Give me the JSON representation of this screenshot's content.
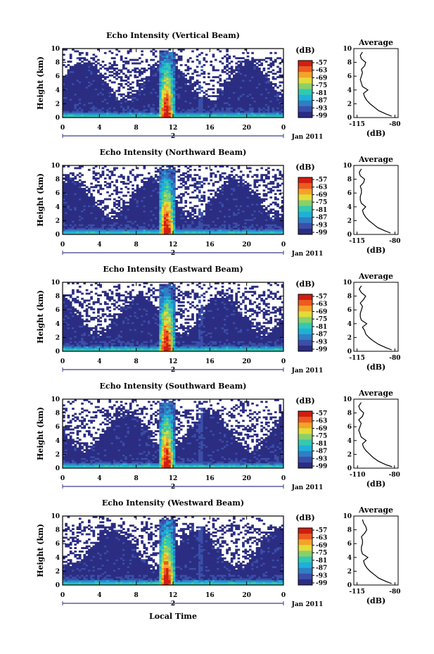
{
  "figure": {
    "xlabel": "Local Time",
    "date_label": "Jan 2011",
    "avg_title": "Average",
    "colorbar_unit": "(dB)",
    "avg_xlabel": "(dB)"
  },
  "colors": {
    "colormap": [
      "#2b2d82",
      "#3a4fa8",
      "#2f7fc4",
      "#1fb0d8",
      "#33c9b0",
      "#8ad06a",
      "#e2dc3a",
      "#f3a32a",
      "#ec5a20",
      "#d01e10"
    ],
    "background": "#ffffff",
    "frame": "#000000",
    "axis_accent": "#3b3f8f"
  },
  "chart_data": [
    {
      "type": "heatmap",
      "title": "Echo Intensity (Vertical Beam)",
      "ylabel": "Height (km)",
      "xlim": [
        0,
        24
      ],
      "ylim": [
        0,
        10
      ],
      "xticks": [
        "0",
        "4",
        "8",
        "12",
        "16",
        "20",
        "0"
      ],
      "yticks": [
        "0",
        "2",
        "4",
        "6",
        "8",
        "10"
      ],
      "colorbar_ticks": [
        "-57",
        "-63",
        "-69",
        "-75",
        "-81",
        "-87",
        "-93",
        "-99"
      ],
      "date_marker": "2",
      "avg_xticks": [
        "-115",
        "-80"
      ],
      "avg_profile": {
        "height_km": [
          0.2,
          0.5,
          1.0,
          1.5,
          2.0,
          2.5,
          3.0,
          3.5,
          4.0,
          4.5,
          5.0,
          5.5,
          6.0,
          6.5,
          7.0,
          7.5,
          8.0,
          8.5,
          9.0,
          9.5
        ],
        "db": [
          -83,
          -88,
          -95,
          -99,
          -103,
          -106,
          -108,
          -109,
          -105,
          -110,
          -111,
          -112,
          -111,
          -110,
          -111,
          -108,
          -107,
          -111,
          -112,
          -110
        ]
      }
    },
    {
      "type": "heatmap",
      "title": "Echo Intensity (Northward Beam)",
      "ylabel": "Height (km)",
      "xlim": [
        0,
        24
      ],
      "ylim": [
        0,
        10
      ],
      "xticks": [
        "0",
        "4",
        "8",
        "12",
        "16",
        "20",
        "0"
      ],
      "yticks": [
        "0",
        "2",
        "4",
        "6",
        "8",
        "10"
      ],
      "colorbar_ticks": [
        "-57",
        "-63",
        "-69",
        "-75",
        "-81",
        "-87",
        "-93",
        "-99"
      ],
      "date_marker": "2",
      "avg_xticks": [
        "-115",
        "-80"
      ],
      "avg_profile": {
        "height_km": [
          0.2,
          0.5,
          1.0,
          1.5,
          2.0,
          2.5,
          3.0,
          3.5,
          4.0,
          4.5,
          5.0,
          5.5,
          6.0,
          6.5,
          7.0,
          7.5,
          8.0,
          8.5,
          9.0,
          9.5
        ],
        "db": [
          -84,
          -89,
          -96,
          -100,
          -104,
          -107,
          -109,
          -110,
          -107,
          -111,
          -112,
          -112,
          -111,
          -111,
          -112,
          -109,
          -108,
          -112,
          -113,
          -111
        ]
      }
    },
    {
      "type": "heatmap",
      "title": "Echo Intensity (Eastward Beam)",
      "ylabel": "Height (km)",
      "xlim": [
        0,
        24
      ],
      "ylim": [
        0,
        10
      ],
      "xticks": [
        "0",
        "4",
        "8",
        "12",
        "16",
        "20",
        "0"
      ],
      "yticks": [
        "0",
        "2",
        "4",
        "6",
        "8",
        "10"
      ],
      "colorbar_ticks": [
        "-57",
        "-63",
        "-69",
        "-75",
        "-81",
        "-87",
        "-93",
        "-99"
      ],
      "date_marker": "2",
      "avg_xticks": [
        "-115",
        "-80"
      ],
      "avg_profile": {
        "height_km": [
          0.2,
          0.5,
          1.0,
          1.5,
          2.0,
          2.5,
          3.0,
          3.5,
          4.0,
          4.5,
          5.0,
          5.5,
          6.0,
          6.5,
          7.0,
          7.5,
          8.0,
          8.5,
          9.0,
          9.5
        ],
        "db": [
          -83,
          -88,
          -95,
          -100,
          -104,
          -107,
          -108,
          -110,
          -106,
          -111,
          -112,
          -112,
          -111,
          -110,
          -112,
          -109,
          -107,
          -111,
          -113,
          -111
        ]
      }
    },
    {
      "type": "heatmap",
      "title": "Echo Intensity (Southward Beam)",
      "ylabel": "Height (km)",
      "xlim": [
        0,
        24
      ],
      "ylim": [
        0,
        10
      ],
      "xticks": [
        "0",
        "4",
        "8",
        "12",
        "16",
        "20",
        "0"
      ],
      "yticks": [
        "0",
        "2",
        "4",
        "6",
        "8",
        "10"
      ],
      "colorbar_ticks": [
        "-57",
        "-63",
        "-69",
        "-75",
        "-81",
        "-87",
        "-93",
        "-99"
      ],
      "date_marker": "2",
      "avg_xticks": [
        "-110",
        "-80"
      ],
      "avg_profile": {
        "height_km": [
          0.2,
          0.5,
          1.0,
          1.5,
          2.0,
          2.5,
          3.0,
          3.5,
          4.0,
          4.5,
          5.0,
          5.5,
          6.0,
          6.5,
          7.0,
          7.5,
          8.0,
          8.5,
          9.0,
          9.5
        ],
        "db": [
          -82,
          -87,
          -93,
          -97,
          -100,
          -103,
          -105,
          -106,
          -103,
          -107,
          -108,
          -109,
          -108,
          -107,
          -109,
          -106,
          -105,
          -108,
          -109,
          -107
        ]
      }
    },
    {
      "type": "heatmap",
      "title": "Echo Intensity (Westward Beam)",
      "ylabel": "Height (km)",
      "xlim": [
        0,
        24
      ],
      "ylim": [
        0,
        10
      ],
      "xticks": [
        "0",
        "4",
        "8",
        "12",
        "16",
        "20",
        "0"
      ],
      "yticks": [
        "0",
        "2",
        "4",
        "6",
        "8",
        "10"
      ],
      "colorbar_ticks": [
        "-57",
        "-63",
        "-69",
        "-75",
        "-81",
        "-87",
        "-93",
        "-99"
      ],
      "date_marker": "2",
      "avg_xticks": [
        "-115",
        "-80"
      ],
      "avg_profile": {
        "height_km": [
          0.2,
          0.5,
          1.0,
          1.5,
          2.0,
          2.5,
          3.0,
          3.5,
          4.0,
          4.5,
          5.0,
          5.5,
          6.0,
          6.5,
          7.0,
          7.5,
          8.0,
          8.5,
          9.0,
          9.5
        ],
        "db": [
          -83,
          -88,
          -95,
          -99,
          -103,
          -106,
          -108,
          -109,
          -105,
          -110,
          -111,
          -111,
          -110,
          -110,
          -111,
          -108,
          -106,
          -107,
          -109,
          -110
        ]
      }
    }
  ]
}
